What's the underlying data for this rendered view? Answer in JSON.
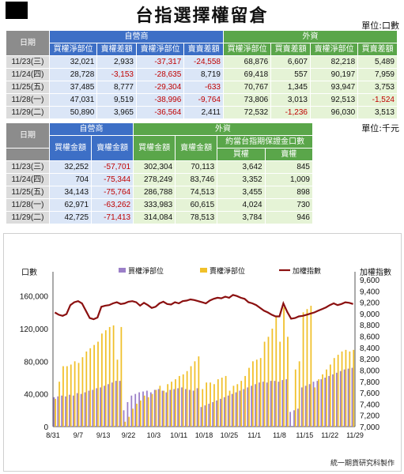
{
  "title": "台指選擇權留倉",
  "unit1": "單位:口數",
  "unit2": "單位:千元",
  "table1": {
    "date_header": "日期",
    "group_headers": [
      "自營商",
      "外資"
    ],
    "col_headers": [
      "買權淨部位",
      "賣權差額",
      "賣權淨部位",
      "賣賣差額",
      "買權淨部位",
      "買賣差額",
      "賣權淨部位",
      "買賣差額"
    ],
    "rows": [
      {
        "date": "11/23",
        "dow": "(三)",
        "cells": [
          "32,021",
          "2,933",
          "-37,317",
          "-24,558",
          "68,876",
          "6,607",
          "82,218",
          "5,489"
        ]
      },
      {
        "date": "11/24",
        "dow": "(四)",
        "cells": [
          "28,728",
          "-3,153",
          "-28,635",
          "8,719",
          "69,418",
          "557",
          "90,197",
          "7,959"
        ]
      },
      {
        "date": "11/25",
        "dow": "(五)",
        "cells": [
          "37,485",
          "8,777",
          "-29,304",
          "-633",
          "70,767",
          "1,345",
          "93,947",
          "3,753"
        ]
      },
      {
        "date": "11/28",
        "dow": "(一)",
        "cells": [
          "47,031",
          "9,519",
          "-38,996",
          "-9,764",
          "73,806",
          "3,013",
          "92,513",
          "-1,524"
        ]
      },
      {
        "date": "11/29",
        "dow": "(二)",
        "cells": [
          "50,890",
          "3,965",
          "-36,564",
          "2,411",
          "72,532",
          "-1,236",
          "96,030",
          "3,513"
        ]
      }
    ]
  },
  "table2": {
    "date_header": "日期",
    "group_headers": [
      "自營商",
      "外資"
    ],
    "sub_header": "約當台指期保證金口數",
    "col_headers": [
      "買權金額",
      "賣權金額",
      "買權金額",
      "賣權金額",
      "買權",
      "賣權"
    ],
    "rows": [
      {
        "date": "11/23",
        "dow": "(三)",
        "cells": [
          "32,252",
          "-57,701",
          "302,304",
          "70,113",
          "3,642",
          "845"
        ]
      },
      {
        "date": "11/24",
        "dow": "(四)",
        "cells": [
          "704",
          "-75,344",
          "278,249",
          "83,746",
          "3,352",
          "1,009"
        ]
      },
      {
        "date": "11/25",
        "dow": "(五)",
        "cells": [
          "34,143",
          "-75,764",
          "286,788",
          "74,513",
          "3,455",
          "898"
        ]
      },
      {
        "date": "11/28",
        "dow": "(一)",
        "cells": [
          "62,971",
          "-63,262",
          "333,983",
          "60,615",
          "4,024",
          "730"
        ]
      },
      {
        "date": "11/29",
        "dow": "(二)",
        "cells": [
          "42,725",
          "-71,413",
          "314,084",
          "78,513",
          "3,784",
          "946"
        ]
      }
    ]
  },
  "chart_data": {
    "type": "bar",
    "title": "",
    "ylabel": "口數",
    "y2label": "加權指數",
    "ylim": [
      0,
      180000
    ],
    "y2lim": [
      7000,
      9600
    ],
    "yticks": [
      "0",
      "40,000",
      "80,000",
      "120,000",
      "160,000"
    ],
    "y2ticks": [
      "7,000",
      "7,200",
      "7,400",
      "7,600",
      "7,800",
      "8,000",
      "8,200",
      "8,400",
      "8,600",
      "8,800",
      "9,000",
      "9,200",
      "9,400",
      "9,600"
    ],
    "xticks": [
      "8/31",
      "9/7",
      "9/13",
      "9/22",
      "10/3",
      "10/11",
      "10/18",
      "10/25",
      "11/1",
      "11/8",
      "11/15",
      "11/22",
      "11/29"
    ],
    "legend": [
      "買權淨部位",
      "賣權淨部位",
      "加權指數"
    ],
    "legend_placement": "top",
    "colors": {
      "call": "#9b7fc8",
      "put": "#f0c02a",
      "index": "#8b1010"
    },
    "series": [
      {
        "name": "買權淨部位",
        "values": [
          36000,
          37000,
          38000,
          37000,
          39000,
          38000,
          41000,
          40000,
          42000,
          44000,
          45000,
          47000,
          48000,
          50000,
          52000,
          54000,
          56000,
          56000,
          20000,
          30000,
          38000,
          40000,
          42000,
          43000,
          44000,
          42000,
          45000,
          46000,
          44000,
          42000,
          45000,
          46000,
          47000,
          48000,
          46000,
          45000,
          44000,
          47000,
          24000,
          26000,
          28000,
          30000,
          32000,
          34000,
          36000,
          38000,
          40000,
          42000,
          44000,
          46000,
          48000,
          50000,
          52000,
          54000,
          55000,
          54000,
          56000,
          56000,
          55000,
          57000,
          58000,
          18000,
          20000,
          22000,
          48000,
          50000,
          52000,
          55000,
          56000,
          58000,
          60000,
          62000,
          64000,
          66000,
          68000,
          70000,
          71000,
          72000
        ]
      },
      {
        "name": "賣權淨部位",
        "values": [
          34000,
          55000,
          74000,
          74000,
          76000,
          80000,
          78000,
          85000,
          92000,
          96000,
          100000,
          104000,
          114000,
          118000,
          122000,
          124000,
          82000,
          122000,
          6000,
          12000,
          22000,
          28000,
          32000,
          38000,
          36000,
          40000,
          45000,
          50000,
          44000,
          52000,
          55000,
          58000,
          62000,
          64000,
          68000,
          74000,
          80000,
          86000,
          46000,
          54000,
          54000,
          52000,
          58000,
          60000,
          62000,
          44000,
          50000,
          52000,
          56000,
          62000,
          72000,
          80000,
          82000,
          84000,
          104000,
          110000,
          120000,
          136000,
          104000,
          146000,
          110000,
          0,
          70000,
          80000,
          140000,
          144000,
          148000,
          48000,
          58000,
          64000,
          70000,
          76000,
          84000,
          88000,
          92000,
          94000,
          92000,
          94000
        ]
      },
      {
        "name": "加權指數",
        "values": [
          9020,
          8980,
          8960,
          8990,
          9150,
          9200,
          9220,
          9180,
          9050,
          8920,
          8900,
          8930,
          9120,
          9140,
          9150,
          9180,
          9200,
          9170,
          9180,
          9210,
          9220,
          9200,
          9140,
          9190,
          9150,
          9100,
          9120,
          9180,
          9210,
          9170,
          9160,
          9200,
          9180,
          9220,
          9230,
          9250,
          9240,
          9220,
          9200,
          9180,
          9230,
          9260,
          9280,
          9270,
          9300,
          9280,
          9330,
          9310,
          9280,
          9260,
          9200,
          9180,
          9150,
          9100,
          9050,
          9020,
          8980,
          8950,
          8950,
          9180,
          9030,
          8910,
          8920,
          8950,
          8960,
          8980,
          9000,
          9020,
          9050,
          9080,
          9110,
          9150,
          9180,
          9150,
          9170,
          9200,
          9190,
          9170
        ]
      }
    ]
  },
  "credit": "統一期貨研究科製作"
}
